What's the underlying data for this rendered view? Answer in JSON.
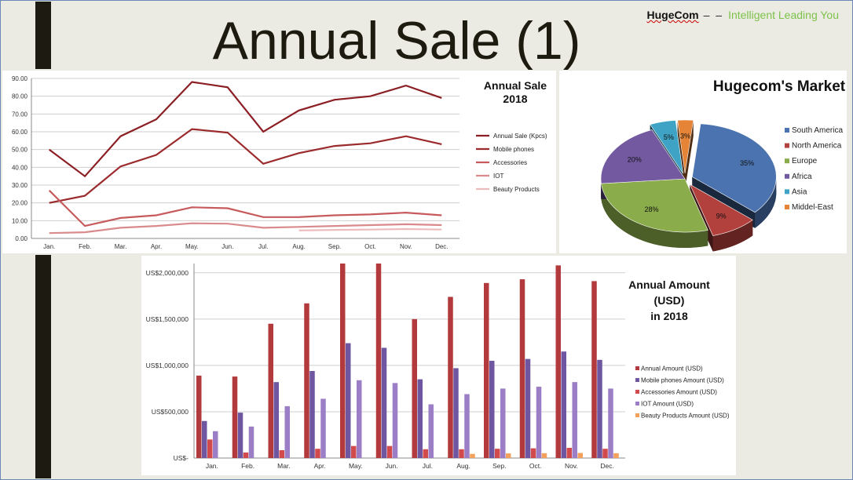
{
  "slide": {
    "title": "Annual Sale (1)",
    "brand": {
      "name": "HugeCom",
      "separator": "– –",
      "tagline": "Intelligent Leading You"
    }
  },
  "chart_data": [
    {
      "type": "line",
      "title": "Annual Sale 2018",
      "title_lines": [
        "Annual Sale",
        "2018"
      ],
      "categories": [
        "Jan.",
        "Feb.",
        "Mar.",
        "Apr.",
        "May.",
        "Jun.",
        "Jul.",
        "Aug.",
        "Sep.",
        "Oct.",
        "Nov.",
        "Dec."
      ],
      "ylim": [
        0,
        90
      ],
      "yticks": [
        "0.00",
        "10.00",
        "20.00",
        "30.00",
        "40.00",
        "50.00",
        "60.00",
        "70.00",
        "80.00",
        "90.00"
      ],
      "grid": true,
      "legend": "right",
      "series": [
        {
          "name": "Annual Sale (Kpcs)",
          "color": "#8b1f24",
          "values": [
            50,
            35,
            57.5,
            67,
            88,
            85,
            60,
            72,
            78,
            80,
            86,
            79
          ]
        },
        {
          "name": "Mobile phones",
          "color": "#9b2a2c",
          "values": [
            20,
            24,
            40.5,
            47,
            61.5,
            59.5,
            42,
            48,
            52,
            53.5,
            57.5,
            53
          ]
        },
        {
          "name": "Accessories",
          "color": "#c75a5c",
          "values": [
            27,
            7,
            11.5,
            13,
            17.5,
            17,
            12,
            12,
            13,
            13.5,
            14.5,
            13
          ]
        },
        {
          "name": "IOT",
          "color": "#d98a8c",
          "values": [
            3,
            3.5,
            6,
            7,
            8.5,
            8.3,
            6,
            6.5,
            7,
            7.5,
            8,
            7.5
          ]
        },
        {
          "name": "Beauty Products",
          "color": "#ecbcbd",
          "values": [
            null,
            null,
            null,
            null,
            null,
            null,
            null,
            4.5,
            4.8,
            5,
            5.3,
            5
          ]
        }
      ]
    },
    {
      "type": "pie",
      "title": "Hugecom's Market",
      "legend": "right",
      "slices": [
        {
          "label": "South America",
          "value": 35,
          "text": "35%",
          "color": "#4a73b0"
        },
        {
          "label": "North America",
          "value": 9,
          "text": "9%",
          "color": "#b2403c"
        },
        {
          "label": "Europe",
          "value": 28,
          "text": "28%",
          "color": "#8aac4a"
        },
        {
          "label": "Africa",
          "value": 20,
          "text": "20%",
          "color": "#7359a0"
        },
        {
          "label": "Asia",
          "value": 5,
          "text": "5%",
          "color": "#3ea3c4"
        },
        {
          "label": "Middel-East",
          "value": 3,
          "text": "3%",
          "color": "#e58436"
        }
      ]
    },
    {
      "type": "bar",
      "title": "Annual Amount (USD) in 2018",
      "title_lines": [
        "Annual Amount",
        "(USD)",
        "in 2018"
      ],
      "categories": [
        "Jan.",
        "Feb.",
        "Mar.",
        "Apr.",
        "May.",
        "Jun.",
        "Jul.",
        "Aug.",
        "Sep.",
        "Oct.",
        "Nov.",
        "Dec."
      ],
      "ylim": [
        0,
        2100000
      ],
      "yticks": [
        {
          "v": 0,
          "label": "US$-"
        },
        {
          "v": 500000,
          "label": "US$500,000"
        },
        {
          "v": 1000000,
          "label": "US$1,000,000"
        },
        {
          "v": 1500000,
          "label": "US$1,500,000"
        },
        {
          "v": 2000000,
          "label": "US$2,000,000"
        }
      ],
      "grid": true,
      "legend": "right",
      "series": [
        {
          "name": "Annual Amount (USD)",
          "color": "#b23a3c",
          "values": [
            890000,
            880000,
            1450000,
            1670000,
            2100000,
            2100000,
            1500000,
            1740000,
            1890000,
            1930000,
            2080000,
            1910000
          ]
        },
        {
          "name": "Mobile phones Amount (USD)",
          "color": "#6e57a0",
          "values": [
            400000,
            490000,
            820000,
            940000,
            1240000,
            1190000,
            850000,
            970000,
            1050000,
            1070000,
            1150000,
            1060000
          ]
        },
        {
          "name": "Accessories Amount (USD)",
          "color": "#d14a4c",
          "values": [
            200000,
            60000,
            85000,
            100000,
            130000,
            130000,
            95000,
            95000,
            100000,
            105000,
            110000,
            100000
          ]
        },
        {
          "name": "IOT Amount (USD)",
          "color": "#9b7ec5",
          "values": [
            290000,
            340000,
            560000,
            640000,
            840000,
            810000,
            580000,
            690000,
            750000,
            770000,
            820000,
            750000
          ]
        },
        {
          "name": "Beauty Products Amount (USD)",
          "color": "#f3a05c",
          "values": [
            0,
            0,
            0,
            0,
            0,
            0,
            0,
            45000,
            50000,
            52000,
            55000,
            52000
          ]
        }
      ]
    }
  ]
}
